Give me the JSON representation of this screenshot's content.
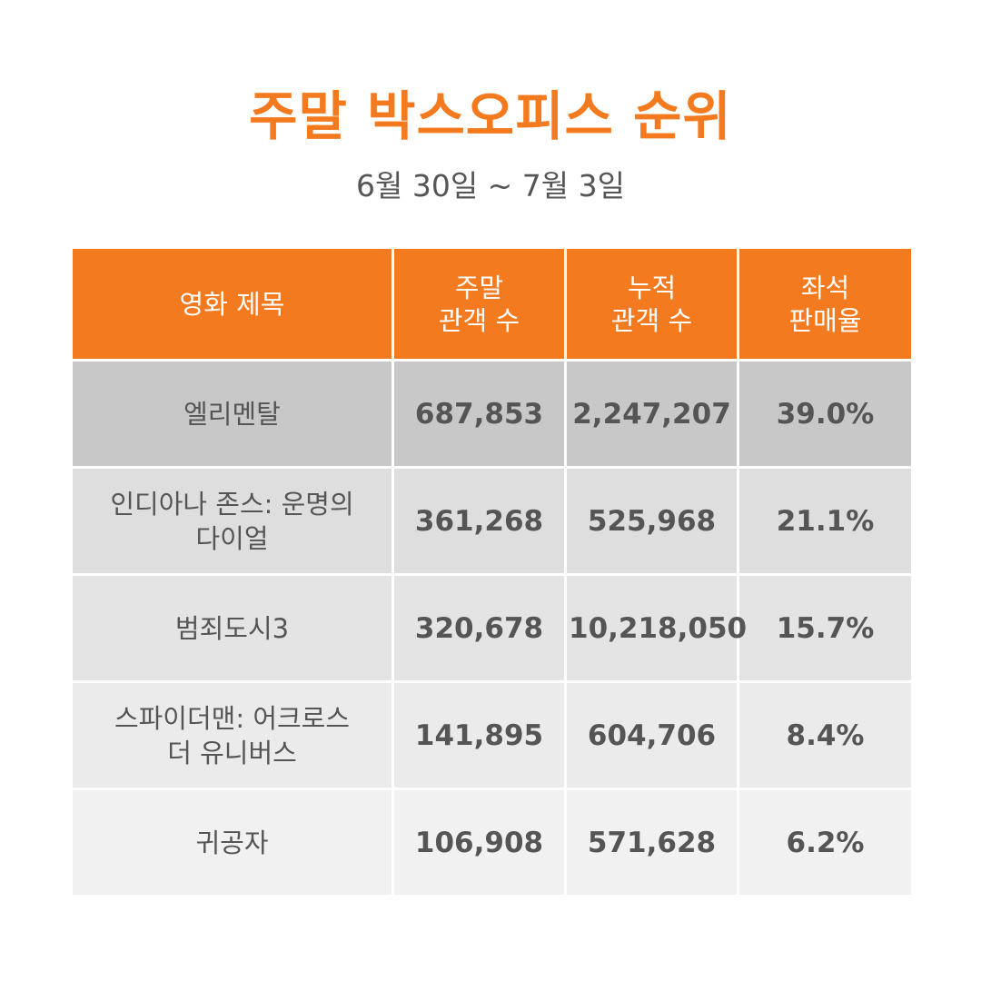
{
  "title": "주말 박스오피스 순위",
  "subtitle": "6월 30일 ~ 7월 3일",
  "colors": {
    "accent": "#f47a1f",
    "text": "#555555",
    "header_text": "#ffffff"
  },
  "table": {
    "headers": [
      [
        "영화 제목"
      ],
      [
        "주말",
        "관객 수"
      ],
      [
        "누적",
        "관객 수"
      ],
      [
        "좌석",
        "판매율"
      ]
    ],
    "rows": [
      {
        "title_lines": [
          "엘리멘탈"
        ],
        "weekend": "687,853",
        "total": "2,247,207",
        "seat_rate": "39.0%"
      },
      {
        "title_lines": [
          "인디아나 존스: 운명의",
          "다이얼"
        ],
        "weekend": "361,268",
        "total": "525,968",
        "seat_rate": "21.1%"
      },
      {
        "title_lines": [
          "범죄도시3"
        ],
        "weekend": "320,678",
        "total": "10,218,050",
        "seat_rate": "15.7%"
      },
      {
        "title_lines": [
          "스파이더맨: 어크로스",
          "더 유니버스"
        ],
        "weekend": "141,895",
        "total": "604,706",
        "seat_rate": "8.4%"
      },
      {
        "title_lines": [
          "귀공자"
        ],
        "weekend": "106,908",
        "total": "571,628",
        "seat_rate": "6.2%"
      }
    ]
  }
}
